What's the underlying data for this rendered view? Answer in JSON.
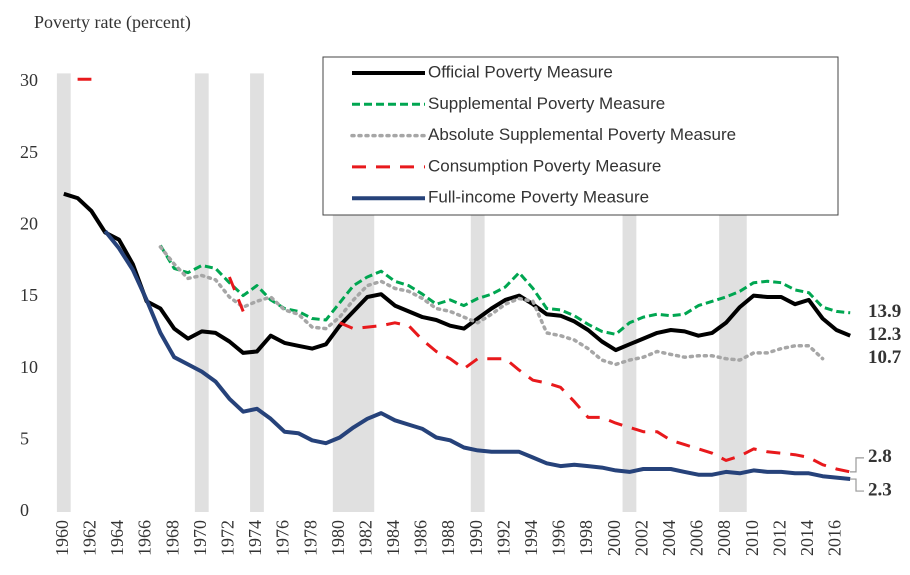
{
  "chart_data": {
    "type": "line",
    "y_axis_label": "Poverty rate (percent)",
    "x": [
      1960,
      1961,
      1962,
      1963,
      1964,
      1965,
      1966,
      1967,
      1968,
      1969,
      1970,
      1971,
      1972,
      1973,
      1974,
      1975,
      1976,
      1977,
      1978,
      1979,
      1980,
      1981,
      1982,
      1983,
      1984,
      1985,
      1986,
      1987,
      1988,
      1989,
      1990,
      1991,
      1992,
      1993,
      1994,
      1995,
      1996,
      1997,
      1998,
      1999,
      2000,
      2001,
      2002,
      2003,
      2004,
      2005,
      2006,
      2007,
      2008,
      2009,
      2010,
      2011,
      2012,
      2013,
      2014,
      2015,
      2016,
      2017
    ],
    "xlim": [
      1959,
      2018
    ],
    "xticks": [
      1960,
      1962,
      1964,
      1966,
      1968,
      1970,
      1972,
      1974,
      1976,
      1978,
      1980,
      1982,
      1984,
      1986,
      1988,
      1990,
      1992,
      1994,
      1996,
      1998,
      2000,
      2002,
      2004,
      2006,
      2008,
      2010,
      2012,
      2014,
      2016
    ],
    "ylim": [
      0,
      32
    ],
    "yticks": [
      0,
      5,
      10,
      15,
      20,
      25,
      30
    ],
    "recessions": [
      [
        1960,
        1960
      ],
      [
        1970,
        1970
      ],
      [
        1974,
        1974
      ],
      [
        1980,
        1982
      ],
      [
        1990,
        1990
      ],
      [
        2001,
        2001
      ],
      [
        2008,
        2009
      ]
    ],
    "series": [
      {
        "name": "Official Poverty Measure",
        "color": "#000000",
        "style": "solid",
        "end_label": 12.3,
        "label_color": "#222222",
        "values": [
          22.2,
          21.9,
          21.0,
          19.5,
          19.0,
          17.3,
          14.7,
          14.2,
          12.8,
          12.1,
          12.6,
          12.5,
          11.9,
          11.1,
          11.2,
          12.3,
          11.8,
          11.6,
          11.4,
          11.7,
          13.0,
          14.0,
          15.0,
          15.2,
          14.4,
          14.0,
          13.6,
          13.4,
          13.0,
          12.8,
          13.5,
          14.2,
          14.8,
          15.1,
          14.5,
          13.8,
          13.7,
          13.3,
          12.7,
          11.9,
          11.3,
          11.7,
          12.1,
          12.5,
          12.7,
          12.6,
          12.3,
          12.5,
          13.2,
          14.3,
          15.1,
          15.0,
          15.0,
          14.5,
          14.8,
          13.5,
          12.7,
          12.3
        ]
      },
      {
        "name": "Supplemental Poverty Measure",
        "color": "#00a651",
        "style": "dashed",
        "end_label": 13.9,
        "label_color": "#00a651",
        "values": [
          null,
          null,
          null,
          null,
          null,
          null,
          null,
          18.6,
          17.0,
          16.7,
          17.2,
          17.0,
          16.0,
          15.1,
          15.8,
          14.8,
          14.2,
          14.0,
          13.5,
          13.4,
          14.6,
          15.8,
          16.4,
          16.8,
          16.1,
          15.8,
          15.2,
          14.5,
          14.8,
          14.4,
          14.9,
          15.2,
          15.7,
          16.7,
          15.6,
          14.2,
          14.1,
          13.7,
          13.1,
          12.6,
          12.4,
          13.2,
          13.6,
          13.8,
          13.7,
          13.8,
          14.4,
          14.7,
          15.0,
          15.4,
          16.0,
          16.1,
          16.0,
          15.5,
          15.3,
          14.3,
          14.0,
          13.9
        ]
      },
      {
        "name": "Absolute Supplemental Poverty Measure",
        "color": "#a6a6a6",
        "style": "dotted",
        "end_label": 10.7,
        "label_color": "#a6a6a6",
        "values": [
          null,
          null,
          null,
          null,
          null,
          null,
          null,
          18.5,
          17.3,
          16.3,
          16.5,
          16.2,
          15.0,
          14.3,
          14.7,
          15.0,
          14.1,
          13.8,
          12.9,
          12.8,
          13.6,
          14.8,
          15.8,
          16.1,
          15.6,
          15.4,
          14.9,
          14.2,
          14.0,
          13.6,
          13.2,
          13.8,
          14.5,
          14.9,
          14.7,
          12.5,
          12.3,
          12.0,
          11.4,
          10.6,
          10.3,
          10.6,
          10.8,
          11.2,
          11.0,
          10.8,
          10.9,
          10.9,
          10.7,
          10.6,
          11.1,
          11.1,
          11.4,
          11.6,
          11.6,
          10.7,
          null,
          null
        ]
      },
      {
        "name": "Consumption Poverty Measure",
        "color": "#e8191c",
        "style": "longdash",
        "end_label": 2.8,
        "label_color": "#e8191c",
        "values": [
          null,
          30.2,
          30.2,
          null,
          null,
          null,
          null,
          null,
          null,
          null,
          null,
          null,
          16.4,
          14.0,
          null,
          null,
          null,
          null,
          null,
          null,
          13.2,
          12.8,
          12.9,
          13.0,
          13.2,
          13.0,
          12.0,
          11.2,
          10.7,
          10.0,
          10.7,
          10.7,
          10.7,
          9.9,
          9.2,
          9.0,
          8.7,
          7.7,
          6.6,
          6.6,
          6.2,
          5.9,
          5.6,
          5.6,
          5.0,
          4.7,
          4.4,
          4.1,
          3.6,
          3.9,
          4.4,
          4.2,
          4.1,
          4.0,
          3.8,
          3.3,
          3.0,
          2.8
        ]
      },
      {
        "name": "Full-income Poverty Measure",
        "color": "#26427a",
        "style": "solid",
        "end_label": 2.3,
        "label_color": "#1f6fb5",
        "values": [
          null,
          null,
          null,
          19.6,
          18.4,
          16.9,
          14.8,
          12.5,
          10.8,
          10.3,
          9.8,
          9.1,
          7.9,
          7.0,
          7.2,
          6.5,
          5.6,
          5.5,
          5.0,
          4.8,
          5.2,
          5.9,
          6.5,
          6.9,
          6.4,
          6.1,
          5.8,
          5.2,
          5.0,
          4.5,
          4.3,
          4.2,
          4.2,
          4.2,
          3.8,
          3.4,
          3.2,
          3.3,
          3.2,
          3.1,
          2.9,
          2.8,
          3.0,
          3.0,
          3.0,
          2.8,
          2.6,
          2.6,
          2.8,
          2.7,
          2.9,
          2.8,
          2.8,
          2.7,
          2.7,
          2.5,
          2.4,
          2.3
        ]
      }
    ]
  }
}
